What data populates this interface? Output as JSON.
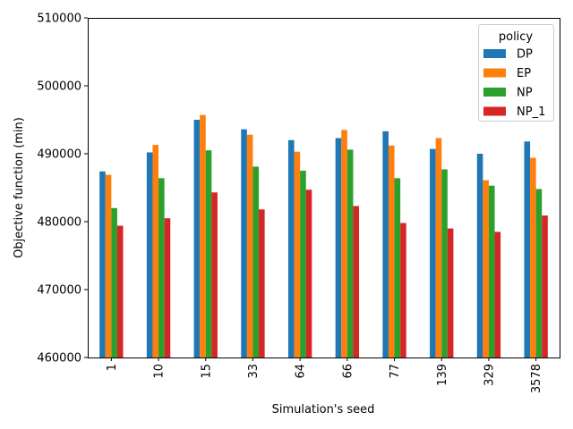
{
  "chart_data": {
    "type": "bar",
    "xlabel": "Simulation's seed",
    "ylabel": "Objective function (min)",
    "ylim": [
      460000,
      510000
    ],
    "yticks": [
      460000,
      470000,
      480000,
      490000,
      500000,
      510000
    ],
    "ytick_labels": [
      "460000",
      "470000",
      "480000",
      "490000",
      "500000",
      "510000"
    ],
    "categories": [
      "1",
      "10",
      "15",
      "33",
      "64",
      "66",
      "77",
      "139",
      "329",
      "3578"
    ],
    "grid": false,
    "legend": {
      "title": "policy",
      "placement": "top-right"
    },
    "series": [
      {
        "name": "DP",
        "color": "#1f77b4",
        "values": [
          487400,
          490200,
          495000,
          493600,
          492000,
          492300,
          493300,
          490700,
          490000,
          491800
        ]
      },
      {
        "name": "EP",
        "color": "#ff7f0e",
        "values": [
          486900,
          491300,
          495700,
          492800,
          490300,
          493500,
          491200,
          492300,
          486100,
          489400
        ]
      },
      {
        "name": "NP",
        "color": "#2ca02c",
        "values": [
          482000,
          486400,
          490500,
          488100,
          487500,
          490600,
          486400,
          487700,
          485300,
          484800
        ]
      },
      {
        "name": "NP_1",
        "color": "#d62728",
        "values": [
          479400,
          480500,
          484300,
          481800,
          484700,
          482300,
          479800,
          479000,
          478500,
          480900
        ]
      }
    ]
  }
}
